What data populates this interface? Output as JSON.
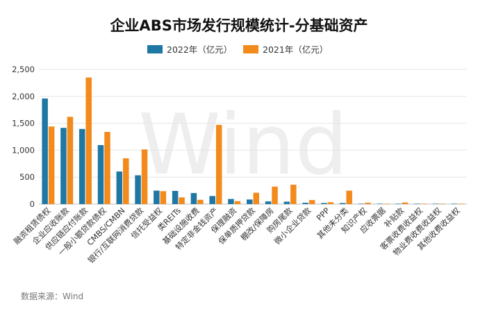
{
  "chart_data": {
    "type": "bar",
    "title": "企业ABS市场发行规模统计-分基础资产",
    "series": [
      {
        "name": "2022年（亿元）",
        "color": "#1f77a4",
        "values": [
          1960,
          1415,
          1395,
          1095,
          605,
          535,
          250,
          245,
          205,
          150,
          95,
          85,
          50,
          45,
          25,
          20,
          20,
          8,
          3,
          1,
          2,
          1,
          1
        ]
      },
      {
        "name": "2021年（亿元）",
        "color": "#f28a1c",
        "values": [
          1440,
          1620,
          2350,
          1340,
          850,
          1015,
          240,
          125,
          80,
          1470,
          55,
          210,
          325,
          360,
          75,
          35,
          250,
          25,
          5,
          30,
          4,
          8,
          6
        ]
      }
    ],
    "categories": [
      "融资租赁债权",
      "企业应收账款",
      "供应链应付账款",
      "一般小额贷款债权",
      "CMBS/CMBN",
      "银行/互联网消费贷款",
      "信托受益权",
      "类REITs",
      "基础设施收费",
      "特定非金钱资产",
      "保理融资",
      "保单质押贷款",
      "棚改/保障房",
      "购房尾款",
      "微小企业贷款",
      "PPP",
      "其他未分类",
      "知识产权",
      "应收票据",
      "补贴款",
      "客票收费收益权",
      "物业费收费收益权",
      "其他收费收益权"
    ],
    "yticks": [
      "0",
      "500",
      "1,000",
      "1,500",
      "2,000",
      "2,500"
    ],
    "ylim": [
      0,
      2500
    ],
    "grid": true,
    "legend": "top-center",
    "source": "数据来源：Wind",
    "watermark": "Wind"
  }
}
